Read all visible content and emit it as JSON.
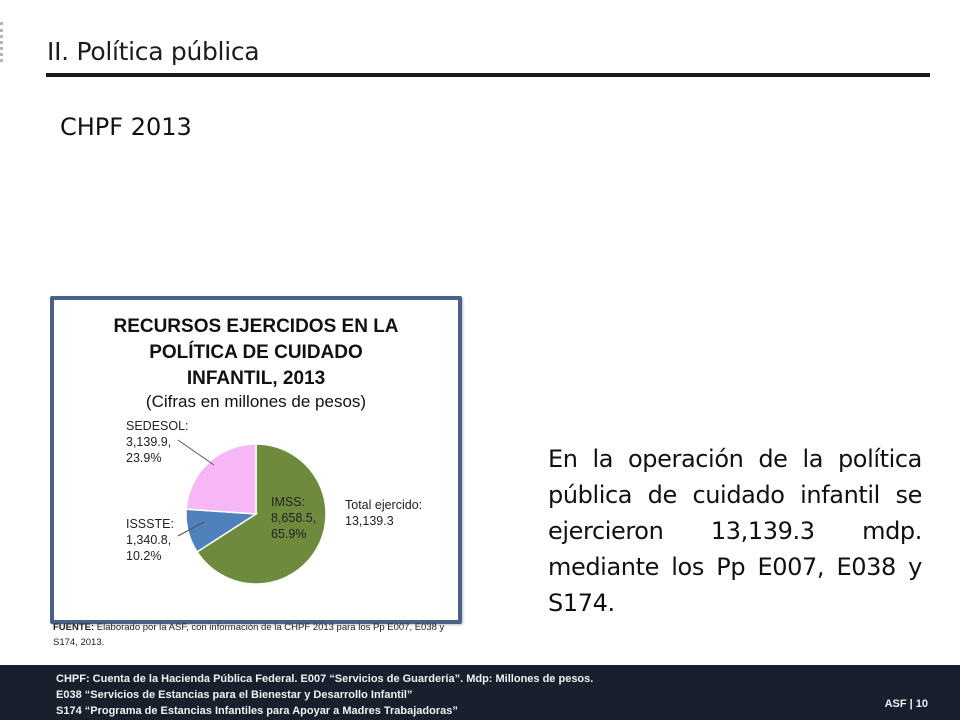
{
  "header": {
    "section_title": "II. Política pública",
    "subtitle": "CHPF 2013"
  },
  "chart_data": {
    "type": "pie",
    "title_lines": [
      "RECURSOS EJERCIDOS EN LA",
      "POLÍTICA DE CUIDADO",
      "INFANTIL, 2013"
    ],
    "subtitle": "(Cifras en millones de pesos)",
    "total_label": [
      "Total ejercido:",
      "13,139.3"
    ],
    "series": [
      {
        "name": "IMSS",
        "value": 8658.5,
        "percent": 65.9,
        "color": "#6e8b3d",
        "label_lines": [
          "IMSS:",
          "8,658.5,",
          "65.9%"
        ]
      },
      {
        "name": "ISSSTE",
        "value": 1340.8,
        "percent": 10.2,
        "color": "#4f81bd",
        "label_lines": [
          "ISSSTE:",
          "1,340.8,",
          "10.2%"
        ]
      },
      {
        "name": "SEDESOL",
        "value": 3139.9,
        "percent": 23.9,
        "color": "#f7b6f5",
        "label_lines": [
          "SEDESOL:",
          "3,139.9,",
          "23.9%"
        ]
      }
    ]
  },
  "source": {
    "label": "FUENTE:",
    "text": " Elaborado por la ASF, con información de la CHPF 2013 para los Pp E007, E038 y S174, 2013."
  },
  "body_text": "En la operación de la política pública de cuidado infantil se ejercieron 13,139.3 mdp. mediante los Pp E007, E038 y S174.",
  "footer": {
    "notes": [
      "CHPF: Cuenta de la Hacienda Pública Federal. E007 “Servicios de Guardería”. Mdp: Millones de pesos.",
      "E038 “Servicios de Estancias para el Bienestar y Desarrollo Infantil”",
      "S174 “Programa de Estancias Infantiles para Apoyar a Madres Trabajadoras”"
    ],
    "page_label": "ASF | 10"
  }
}
